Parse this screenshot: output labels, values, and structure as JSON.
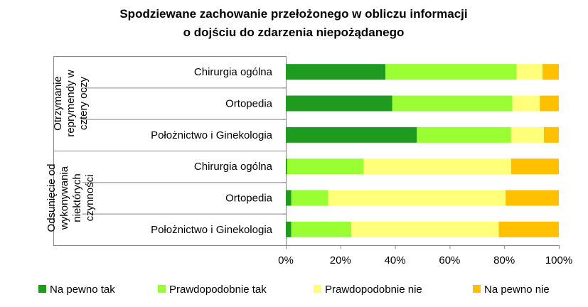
{
  "chart_data": {
    "type": "bar",
    "orientation": "horizontal",
    "stacked": "percent",
    "title": [
      "Spodziewane zachowanie przełożonego w obliczu informacji",
      "o dojściu do zdarzenia niepożądanego"
    ],
    "groups": [
      {
        "label": [
          "Otrzymanie",
          "reprymendy w",
          "cztery oczy"
        ],
        "categories": [
          "Chirurgia ogólna",
          "Ortopedia",
          "Położnictwo i Ginekologia"
        ]
      },
      {
        "label": [
          "Odsunięcie od",
          "wykonywania",
          "niektórych",
          "czynności"
        ],
        "categories": [
          "Chirurgia ogólna",
          "Ortopedia",
          "Położnictwo i Ginekologia"
        ]
      }
    ],
    "series": [
      {
        "name": "Na pewno tak",
        "color": "#1f9c1f",
        "values": [
          36.5,
          39,
          48,
          0.5,
          2,
          2
        ]
      },
      {
        "name": "Prawdopodobnie tak",
        "color": "#99ff33",
        "values": [
          48,
          44,
          34.5,
          28,
          13.5,
          22
        ]
      },
      {
        "name": "Prawdopodobnie nie",
        "color": "#ffff7a",
        "values": [
          9.5,
          10,
          12,
          54,
          65,
          54
        ]
      },
      {
        "name": "Na pewno nie",
        "color": "#ffc000",
        "values": [
          6,
          7,
          5.5,
          17.5,
          19.5,
          22
        ]
      }
    ],
    "xlim": [
      0,
      100
    ],
    "xticks": [
      "0%",
      "20%",
      "40%",
      "60%",
      "80%",
      "100%"
    ],
    "grid": false,
    "legend": "bottom"
  }
}
